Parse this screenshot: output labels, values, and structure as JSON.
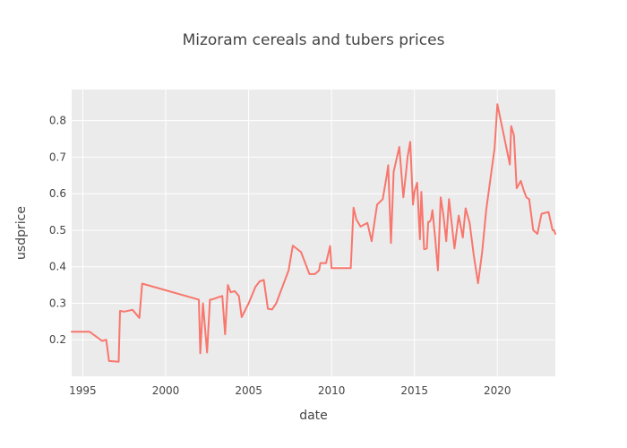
{
  "chart_data": {
    "type": "line",
    "title": "Mizoram cereals and tubers prices",
    "xlabel": "date",
    "ylabel": "usdprice",
    "xlim": [
      "1994-05-01",
      "2023-07-01"
    ],
    "ylim": [
      0.1,
      0.885
    ],
    "grid": true,
    "legend": "none",
    "x_ticks": [
      "1995",
      "2000",
      "2005",
      "2010",
      "2015",
      "2020"
    ],
    "y_ticks": [
      "0.2",
      "0.3",
      "0.4",
      "0.5",
      "0.6",
      "0.7",
      "0.8"
    ],
    "colors": {
      "plot_bg": "#ebebeb",
      "grid": "#ffffff",
      "line": "#f8766d",
      "text": "#444444"
    },
    "series": [
      {
        "x": [
          "1994-05-01",
          "1995-06-01",
          "1996-03-01",
          "1996-06-01",
          "1996-08-01",
          "1997-03-01",
          "1997-04-01",
          "1997-07-01",
          "1998-01-01",
          "1998-06-01",
          "1998-08-01",
          "2002-01-01",
          "2002-02-01",
          "2002-04-01",
          "2002-07-01",
          "2002-09-01",
          "2002-10-01",
          "2003-06-01",
          "2003-08-01",
          "2003-10-01",
          "2003-12-01",
          "2004-03-01",
          "2004-06-01",
          "2004-08-01",
          "2005-01-01",
          "2005-06-01",
          "2005-09-01",
          "2005-12-01",
          "2006-03-01",
          "2006-06-01",
          "2006-09-01",
          "2007-03-01",
          "2007-06-01",
          "2007-09-01",
          "2008-03-01",
          "2008-09-01",
          "2009-01-01",
          "2009-04-01",
          "2009-05-01",
          "2009-09-01",
          "2009-12-01",
          "2010-01-01",
          "2010-03-01",
          "2011-03-01",
          "2011-05-01",
          "2011-07-01",
          "2011-10-01",
          "2012-03-01",
          "2012-06-01",
          "2012-10-01",
          "2013-02-01",
          "2013-05-01",
          "2013-06-01",
          "2013-08-01",
          "2013-10-01",
          "2014-02-01",
          "2014-05-01",
          "2014-07-01",
          "2014-08-01",
          "2014-10-01",
          "2014-12-01",
          "2015-01-01",
          "2015-03-01",
          "2015-05-01",
          "2015-06-01",
          "2015-08-01",
          "2015-10-01",
          "2015-11-01",
          "2015-12-01",
          "2016-01-01",
          "2016-02-01",
          "2016-04-01",
          "2016-06-01",
          "2016-08-01",
          "2016-10-01",
          "2016-12-01",
          "2017-02-01",
          "2017-06-01",
          "2017-09-01",
          "2017-12-01",
          "2018-02-01",
          "2018-05-01",
          "2018-08-01",
          "2018-11-01",
          "2019-02-01",
          "2019-05-01",
          "2019-08-01",
          "2019-11-01",
          "2020-01-01",
          "2020-10-01",
          "2020-11-01",
          "2021-01-01",
          "2021-03-01",
          "2021-06-01",
          "2021-08-01",
          "2021-10-01",
          "2021-12-01",
          "2022-03-01",
          "2022-06-01",
          "2022-09-01",
          "2022-12-01",
          "2023-02-01",
          "2023-05-01",
          "2023-06-01",
          "2023-07-01"
        ],
        "y": [
          0.222,
          0.222,
          0.197,
          0.2,
          0.142,
          0.14,
          0.279,
          0.277,
          0.282,
          0.26,
          0.354,
          0.31,
          0.163,
          0.3,
          0.165,
          0.31,
          0.31,
          0.32,
          0.215,
          0.35,
          0.33,
          0.333,
          0.32,
          0.262,
          0.3,
          0.345,
          0.36,
          0.364,
          0.285,
          0.283,
          0.3,
          0.36,
          0.39,
          0.458,
          0.44,
          0.38,
          0.38,
          0.39,
          0.41,
          0.41,
          0.457,
          0.396,
          0.396,
          0.396,
          0.562,
          0.53,
          0.51,
          0.52,
          0.47,
          0.57,
          0.585,
          0.65,
          0.678,
          0.465,
          0.66,
          0.728,
          0.59,
          0.66,
          0.7,
          0.742,
          0.57,
          0.605,
          0.63,
          0.475,
          0.605,
          0.448,
          0.45,
          0.523,
          0.523,
          0.53,
          0.555,
          0.48,
          0.39,
          0.59,
          0.54,
          0.47,
          0.585,
          0.45,
          0.54,
          0.48,
          0.56,
          0.52,
          0.43,
          0.355,
          0.44,
          0.555,
          0.64,
          0.725,
          0.845,
          0.68,
          0.785,
          0.76,
          0.615,
          0.635,
          0.61,
          0.59,
          0.585,
          0.5,
          0.49,
          0.545,
          0.548,
          0.55,
          0.5,
          0.5,
          0.49
        ]
      }
    ]
  }
}
